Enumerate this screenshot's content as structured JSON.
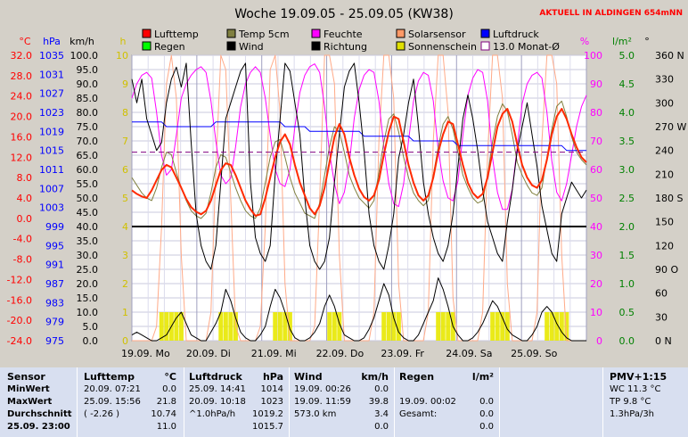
{
  "chart_data": {
    "type": "line",
    "title": "Woche 19.09.05 - 25.09.05 (KW38)",
    "station_note": "AKTUELL IN ALDINGEN 654mNN",
    "legend": [
      {
        "name": "Lufttemp",
        "color": "#ff0000"
      },
      {
        "name": "Temp 5cm",
        "color": "#808040"
      },
      {
        "name": "Feuchte",
        "color": "#ff00ff"
      },
      {
        "name": "Solarsensor",
        "color": "#ff9966"
      },
      {
        "name": "Luftdruck",
        "color": "#0000ff"
      },
      {
        "name": "Regen",
        "color": "#00ff00"
      },
      {
        "name": "Wind",
        "color": "#000000"
      },
      {
        "name": "Richtung",
        "color": "#000000"
      },
      {
        "name": "Sonnenschein",
        "color": "#e0e000"
      },
      {
        "name": "13.0 Monat-Ø",
        "color": "#800080"
      }
    ],
    "axes": {
      "celsius": {
        "unit": "°C",
        "color": "#ff0000",
        "min": -24,
        "max": 32,
        "ticks": [
          "32.0",
          "28.0",
          "24.0",
          "20.0",
          "16.0",
          "12.0",
          "8.0",
          "4.0",
          "0.0",
          "-4.0",
          "-8.0",
          "-12.0",
          "-16.0",
          "-20.0",
          "-24.0"
        ]
      },
      "hpa": {
        "unit": "hPa",
        "color": "#0000ff",
        "min": 975,
        "max": 1035,
        "ticks": [
          "1035",
          "1031",
          "1027",
          "1023",
          "1019",
          "1015",
          "1011",
          "1007",
          "1003",
          "999",
          "995",
          "991",
          "987",
          "983",
          "979",
          "975"
        ]
      },
      "kmh": {
        "unit": "km/h",
        "color": "#000000",
        "min": 0,
        "max": 100,
        "ticks": [
          "100.0",
          "95.0",
          "90.0",
          "85.0",
          "80.0",
          "75.0",
          "70.0",
          "65.0",
          "60.0",
          "55.0",
          "50.0",
          "45.0",
          "40.0",
          "35.0",
          "30.0",
          "25.0",
          "20.0",
          "15.0",
          "10.0",
          "5.0",
          "0.0"
        ]
      },
      "hours": {
        "unit": "h",
        "color": "#d0c000",
        "min": 0,
        "max": 10,
        "ticks": [
          "10",
          "9",
          "8",
          "7",
          "6",
          "5",
          "4",
          "3",
          "2",
          "1",
          "0"
        ]
      },
      "percent": {
        "unit": "%",
        "color": "#ff00ff",
        "min": 0,
        "max": 100,
        "ticks": [
          "100",
          "90",
          "80",
          "70",
          "60",
          "50",
          "40",
          "30",
          "20",
          "10",
          "0"
        ]
      },
      "rain": {
        "unit": "l/m²",
        "color": "#008000",
        "min": 0,
        "max": 5,
        "ticks": [
          "5.0",
          "4.5",
          "4.0",
          "3.5",
          "3.0",
          "2.5",
          "2.0",
          "1.5",
          "1.0",
          "0.5",
          "0.0"
        ]
      },
      "direction": {
        "unit": "°",
        "color": "#000000",
        "min": 0,
        "max": 360,
        "ticks": [
          "360 N",
          "330",
          "300",
          "270 W",
          "240",
          "210",
          "180 S",
          "150",
          "120",
          "90 O",
          "60",
          "30",
          "0 N"
        ]
      }
    },
    "x_labels": [
      "19.09. Mo",
      "20.09. Di",
      "21.09. Mi",
      "22.09. Do",
      "23.09. Fr",
      "24.09. Sa",
      "25.09. So"
    ],
    "series": {
      "Lufttemp_C": [
        5.5,
        4.8,
        4.3,
        4.0,
        5.5,
        7.5,
        9.5,
        10.5,
        10.0,
        8.0,
        6.0,
        3.8,
        2.2,
        1.3,
        0.8,
        1.5,
        3.5,
        6.5,
        9.5,
        10.8,
        10.5,
        8.5,
        6.0,
        3.5,
        1.8,
        0.5,
        0.8,
        4.0,
        8.0,
        12.0,
        15.0,
        16.5,
        14.5,
        10.5,
        7.0,
        4.5,
        2.0,
        0.8,
        2.5,
        6.0,
        11.0,
        16.0,
        18.5,
        16.5,
        12.0,
        8.5,
        5.8,
        4.2,
        3.5,
        4.5,
        7.5,
        12.5,
        17.0,
        20.0,
        19.5,
        15.0,
        10.5,
        7.0,
        4.5,
        3.5,
        4.5,
        8.0,
        13.0,
        16.5,
        19.0,
        18.5,
        14.5,
        10.5,
        7.0,
        5.0,
        4.0,
        4.8,
        8.0,
        13.0,
        18.0,
        20.5,
        21.5,
        19.0,
        14.5,
        10.5,
        8.0,
        6.5,
        6.0,
        7.5,
        11.5,
        16.5,
        20.0,
        21.5,
        19.5,
        16.5,
        14.0,
        12.0,
        11.0
      ],
      "Temp5cm_C": [
        8.0,
        6.5,
        5.0,
        4.0,
        3.5,
        6.0,
        10.0,
        13.0,
        12.5,
        9.0,
        6.0,
        3.5,
        1.5,
        0.5,
        0.0,
        1.0,
        5.0,
        10.0,
        12.5,
        12.0,
        9.0,
        6.0,
        3.5,
        1.5,
        0.5,
        0.0,
        2.0,
        7.0,
        12.0,
        15.0,
        15.5,
        12.0,
        8.0,
        5.0,
        3.0,
        1.0,
        0.5,
        0.0,
        3.0,
        8.5,
        14.0,
        18.0,
        17.0,
        13.0,
        8.5,
        6.0,
        4.0,
        3.0,
        2.0,
        3.5,
        9.0,
        15.0,
        19.5,
        20.5,
        17.0,
        12.0,
        8.0,
        5.0,
        3.5,
        2.5,
        3.5,
        8.5,
        14.0,
        18.5,
        20.0,
        17.5,
        13.0,
        8.5,
        6.0,
        4.0,
        3.0,
        3.5,
        8.5,
        15.0,
        20.0,
        22.5,
        21.0,
        16.5,
        11.0,
        8.5,
        6.5,
        5.0,
        4.5,
        6.0,
        12.0,
        17.5,
        22.0,
        23.0,
        20.0,
        16.0,
        13.0,
        11.5,
        10.5
      ],
      "Feuchte_pct": [
        85,
        90,
        93,
        94,
        92,
        80,
        65,
        58,
        60,
        72,
        85,
        90,
        93,
        95,
        96,
        94,
        84,
        70,
        58,
        55,
        57,
        68,
        82,
        90,
        94,
        96,
        94,
        85,
        72,
        60,
        55,
        54,
        60,
        75,
        87,
        93,
        96,
        97,
        94,
        82,
        66,
        55,
        48,
        52,
        62,
        78,
        88,
        93,
        95,
        94,
        84,
        68,
        55,
        48,
        47,
        55,
        70,
        84,
        91,
        94,
        93,
        84,
        67,
        56,
        50,
        49,
        56,
        72,
        86,
        92,
        95,
        94,
        84,
        64,
        52,
        46,
        46,
        53,
        68,
        83,
        90,
        93,
        94,
        92,
        80,
        63,
        52,
        49,
        55,
        65,
        75,
        82,
        86
      ],
      "Luftdruck_hPa": [
        1021,
        1021,
        1021,
        1021,
        1021,
        1021,
        1021,
        1020,
        1020,
        1020,
        1020,
        1020,
        1020,
        1020,
        1020,
        1020,
        1020,
        1021,
        1021,
        1021,
        1021,
        1021,
        1021,
        1021,
        1021,
        1021,
        1021,
        1021,
        1021,
        1021,
        1021,
        1020,
        1020,
        1020,
        1020,
        1020,
        1019,
        1019,
        1019,
        1019,
        1019,
        1019,
        1019,
        1019,
        1019,
        1019,
        1019,
        1018,
        1018,
        1018,
        1018,
        1018,
        1018,
        1018,
        1018,
        1018,
        1018,
        1017,
        1017,
        1017,
        1017,
        1017,
        1017,
        1017,
        1017,
        1017,
        1016,
        1016,
        1016,
        1016,
        1016,
        1016,
        1016,
        1016,
        1016,
        1016,
        1016,
        1016,
        1016,
        1016,
        1016,
        1016,
        1016,
        1016,
        1016,
        1016,
        1016,
        1016,
        1015,
        1015,
        1015,
        1015,
        1015
      ],
      "Wind_kmh": [
        2,
        3,
        2,
        1,
        0,
        0,
        1,
        2,
        5,
        8,
        10,
        6,
        2,
        1,
        0,
        0,
        3,
        6,
        10,
        18,
        14,
        8,
        3,
        1,
        0,
        0,
        2,
        5,
        12,
        18,
        15,
        10,
        4,
        1,
        0,
        0,
        1,
        3,
        6,
        12,
        16,
        12,
        6,
        2,
        1,
        0,
        0,
        1,
        4,
        8,
        14,
        20,
        16,
        8,
        3,
        1,
        0,
        0,
        2,
        6,
        10,
        14,
        22,
        18,
        12,
        5,
        2,
        0,
        0,
        1,
        3,
        6,
        10,
        14,
        12,
        8,
        4,
        2,
        1,
        0,
        0,
        2,
        5,
        10,
        12,
        10,
        6,
        3,
        1,
        0,
        0,
        0,
        0
      ],
      "Richtung_deg": [
        330,
        300,
        330,
        280,
        260,
        240,
        250,
        300,
        330,
        345,
        320,
        350,
        250,
        160,
        120,
        100,
        90,
        120,
        200,
        280,
        300,
        320,
        340,
        350,
        200,
        130,
        110,
        100,
        120,
        210,
        280,
        350,
        340,
        300,
        260,
        180,
        120,
        100,
        90,
        100,
        130,
        200,
        260,
        320,
        340,
        350,
        300,
        240,
        160,
        120,
        100,
        90,
        120,
        160,
        230,
        260,
        300,
        330,
        270,
        200,
        160,
        130,
        110,
        100,
        120,
        160,
        220,
        280,
        310,
        280,
        240,
        190,
        150,
        130,
        110,
        100,
        150,
        190,
        240,
        270,
        300,
        260,
        220,
        170,
        140,
        110,
        100,
        160,
        180,
        200,
        190,
        180,
        190
      ],
      "Sonne_h": [
        0,
        0,
        0,
        0,
        0,
        0,
        1,
        1,
        1,
        1,
        1,
        0,
        0,
        0,
        0,
        0,
        0,
        0,
        1,
        1,
        1,
        1,
        0,
        0,
        0,
        0,
        0,
        0,
        0,
        1,
        1,
        1,
        1,
        0,
        0,
        0,
        0,
        0,
        0,
        0,
        1,
        1,
        1,
        0,
        0,
        0,
        0,
        0,
        0,
        0,
        0,
        1,
        1,
        1,
        1,
        0,
        0,
        0,
        0,
        0,
        0,
        0,
        1,
        1,
        1,
        1,
        0,
        0,
        0,
        0,
        0,
        0,
        0,
        1,
        1,
        1,
        1,
        0,
        0,
        0,
        0,
        0,
        0,
        0,
        1,
        1,
        1,
        1,
        1,
        0,
        0,
        0,
        0
      ],
      "Solar_pct": [
        0,
        0,
        0,
        0,
        0,
        5,
        40,
        90,
        100,
        85,
        30,
        0,
        0,
        0,
        0,
        0,
        10,
        60,
        100,
        95,
        50,
        5,
        0,
        0,
        0,
        0,
        5,
        40,
        95,
        100,
        80,
        20,
        0,
        0,
        0,
        0,
        0,
        5,
        50,
        100,
        100,
        90,
        30,
        0,
        0,
        0,
        0,
        0,
        0,
        10,
        70,
        100,
        100,
        85,
        20,
        0,
        0,
        0,
        0,
        0,
        10,
        70,
        100,
        100,
        80,
        15,
        0,
        0,
        0,
        0,
        0,
        10,
        65,
        100,
        100,
        85,
        20,
        0,
        0,
        0,
        0,
        0,
        10,
        70,
        100,
        100,
        90,
        30,
        0,
        0,
        0,
        0,
        0
      ],
      "monthly_avg_C": 13.0,
      "reference_line_kmh": 40.0
    }
  },
  "table": {
    "sensor": {
      "header": "Sensor",
      "rows": [
        "MinWert",
        "MaxWert",
        "Durchschnitt",
        "25.09. 23:00"
      ]
    },
    "lufttemp": {
      "header": "Lufttemp",
      "unit": "°C",
      "min_date": "20.09.",
      "min_time": "07:21",
      "min_val": "0.0",
      "max_date": "25.09.",
      "max_time": "15:56",
      "max_val": "21.8",
      "avg_note": "( -2.26 )",
      "avg_val": "10.74",
      "cur_val": "11.0"
    },
    "luftdruck": {
      "header": "Luftdruck",
      "unit": "hPa",
      "min_date": "25.09.",
      "min_time": "14:41",
      "min_val": "1014",
      "max_date": "20.09.",
      "max_time": "10:18",
      "max_val": "1023",
      "avg_note": "^1.0hPa/h",
      "avg_val": "1019.2",
      "cur_val": "1015.7"
    },
    "wind": {
      "header": "Wind",
      "unit": "km/h",
      "min_date": "19.09.",
      "min_time": "00:26",
      "min_val": "0.0",
      "max_date": "19.09.",
      "max_time": "11:59",
      "max_val": "39.8",
      "avg_note": "573.0 km",
      "avg_val": "3.4",
      "cur_val": "0.0"
    },
    "regen": {
      "header": "Regen",
      "unit": "l/m²",
      "r1_date": "19.09.",
      "r1_time": "00:02",
      "r1_val": "0.0",
      "r2_label": "Gesamt:",
      "r2_val": "0.0",
      "r3_val": "0.0"
    },
    "pmv": {
      "header": "PMV+1:15",
      "rows": [
        "WC 11.3 °C",
        "TP 9.8 °C",
        "1.3hPa/3h"
      ]
    }
  }
}
